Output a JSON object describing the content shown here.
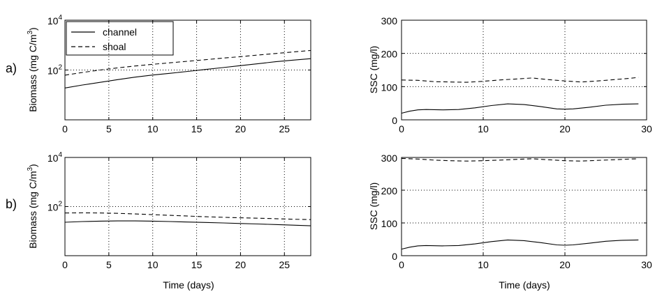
{
  "figure": {
    "panel_labels": [
      "a)",
      "b)"
    ],
    "legend": {
      "entries": [
        {
          "label": "channel",
          "style": "solid"
        },
        {
          "label": "shoal",
          "style": "dashed"
        }
      ]
    }
  },
  "chart_data": [
    {
      "id": "a-biomass",
      "type": "line",
      "scale": "log",
      "xlabel": "",
      "ylabel": "Biomass (mg C/m3)",
      "xlim": [
        0,
        28
      ],
      "ylim": [
        1,
        10000
      ],
      "xticks": [
        0,
        5,
        10,
        15,
        20,
        25
      ],
      "yticks": [
        {
          "base": "10",
          "exp": "2",
          "value": 100
        },
        {
          "base": "10",
          "exp": "4",
          "value": 10000
        }
      ],
      "grid": true,
      "legend_position": "top-left",
      "series": [
        {
          "name": "channel",
          "style": "solid",
          "x": [
            0,
            2,
            4,
            6,
            8,
            10,
            12,
            14,
            16,
            18,
            20,
            22,
            24,
            26,
            28
          ],
          "y": [
            19,
            25,
            32,
            41,
            52,
            63,
            74,
            88,
            105,
            125,
            150,
            180,
            215,
            250,
            285
          ]
        },
        {
          "name": "shoal",
          "style": "dashed",
          "x": [
            0,
            2,
            4,
            6,
            8,
            10,
            12,
            14,
            16,
            18,
            20,
            22,
            24,
            26,
            28
          ],
          "y": [
            62,
            80,
            100,
            122,
            145,
            170,
            195,
            225,
            260,
            300,
            345,
            400,
            460,
            530,
            610
          ]
        }
      ]
    },
    {
      "id": "a-ssc",
      "type": "line",
      "scale": "linear",
      "xlabel": "",
      "ylabel": "SSC (mg/l)",
      "xlim": [
        0,
        30
      ],
      "ylim": [
        0,
        300
      ],
      "xticks": [
        0,
        10,
        20,
        30
      ],
      "yticks": [
        0,
        100,
        200,
        300
      ],
      "grid": true,
      "series": [
        {
          "name": "channel",
          "style": "solid",
          "x": [
            0,
            1,
            2,
            3,
            5,
            7,
            9,
            11,
            13,
            15,
            17,
            19,
            20,
            21,
            23,
            25,
            27,
            29
          ],
          "y": [
            20,
            26,
            30,
            31,
            30,
            31,
            36,
            43,
            48,
            46,
            40,
            33,
            32,
            33,
            38,
            44,
            47,
            48
          ]
        },
        {
          "name": "shoal",
          "style": "dashed",
          "x": [
            0,
            2,
            4,
            6,
            8,
            10,
            12,
            14,
            16,
            18,
            20,
            22,
            24,
            26,
            28,
            29
          ],
          "y": [
            120,
            119,
            115,
            114,
            113,
            116,
            120,
            123,
            126,
            121,
            117,
            114,
            117,
            121,
            125,
            128
          ]
        }
      ]
    },
    {
      "id": "b-biomass",
      "type": "line",
      "scale": "log",
      "xlabel": "Time (days)",
      "ylabel": "Biomass (mg C/m3)",
      "xlim": [
        0,
        28
      ],
      "ylim": [
        1,
        10000
      ],
      "xticks": [
        0,
        5,
        10,
        15,
        20,
        25
      ],
      "yticks": [
        {
          "base": "10",
          "exp": "2",
          "value": 100
        },
        {
          "base": "10",
          "exp": "4",
          "value": 10000
        }
      ],
      "grid": true,
      "series": [
        {
          "name": "channel",
          "style": "solid",
          "x": [
            0,
            2,
            4,
            6,
            8,
            10,
            12,
            14,
            16,
            18,
            20,
            22,
            24,
            26,
            28
          ],
          "y": [
            23,
            24.5,
            25.5,
            26,
            26,
            25.5,
            24.5,
            23.5,
            22.5,
            21.5,
            20.5,
            19.5,
            18.5,
            17.5,
            16.5
          ]
        },
        {
          "name": "shoal",
          "style": "dashed",
          "x": [
            0,
            2,
            4,
            6,
            8,
            10,
            12,
            14,
            16,
            18,
            20,
            22,
            24,
            26,
            28
          ],
          "y": [
            55,
            55.5,
            55,
            53,
            50,
            47,
            44,
            41,
            38.5,
            36.5,
            35,
            33.5,
            32,
            30.5,
            29.5
          ]
        }
      ]
    },
    {
      "id": "b-ssc",
      "type": "line",
      "scale": "linear",
      "xlabel": "Time (days)",
      "ylabel": "SSC (mg/l)",
      "xlim": [
        0,
        30
      ],
      "ylim": [
        0,
        300
      ],
      "xticks": [
        0,
        10,
        20,
        30
      ],
      "yticks": [
        0,
        100,
        200,
        300
      ],
      "grid": true,
      "series": [
        {
          "name": "channel",
          "style": "solid",
          "x": [
            0,
            1,
            2,
            3,
            5,
            7,
            9,
            11,
            13,
            15,
            17,
            19,
            20,
            21,
            23,
            25,
            27,
            29
          ],
          "y": [
            20,
            26,
            30,
            31,
            30,
            31,
            36,
            43,
            48,
            46,
            40,
            33,
            32,
            33,
            38,
            44,
            47,
            48
          ]
        },
        {
          "name": "shoal",
          "style": "dashed",
          "x": [
            0,
            2,
            4,
            6,
            8,
            10,
            12,
            14,
            16,
            18,
            20,
            22,
            24,
            26,
            28,
            29
          ],
          "y": [
            297,
            295,
            292,
            290,
            289,
            290,
            292,
            294,
            296,
            293,
            290,
            289,
            291,
            293,
            295,
            296
          ]
        }
      ]
    }
  ]
}
